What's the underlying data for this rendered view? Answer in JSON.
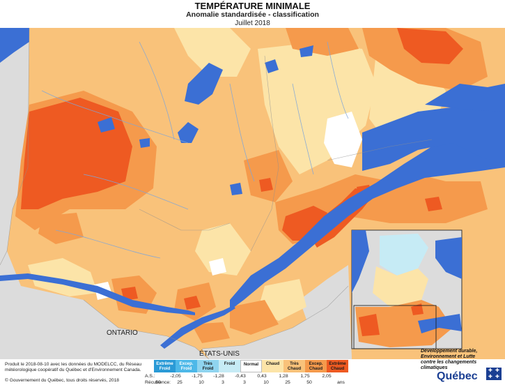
{
  "title": "TEMPÉRATURE MINIMALE",
  "subtitle": "Anomalie standardisée - classification",
  "period": "Juillet 2018",
  "labels": {
    "ontario": "ONTARIO",
    "usa": "ÉTATS-UNIS"
  },
  "footer": {
    "produced": "Produit le 2018-08-10 avec les données du MODELCC, du Réseau météorologique coopératif du Québec et d'Environnement Canada.",
    "copyright": "© Gouvernement du Québec, tous droits réservés, 2018"
  },
  "legend": {
    "as_label": "A.S.:",
    "recurrence_label": "Récurrence:",
    "years_unit": "ans",
    "classes": [
      {
        "label_line1": "Extrême",
        "label_line2": "Froid",
        "color": "#2a9ad6",
        "text_color": "#ffffff"
      },
      {
        "label_line1": "Excep.",
        "label_line2": "Froid",
        "color": "#4db8e8",
        "text_color": "#ffffff"
      },
      {
        "label_line1": "Très",
        "label_line2": "Froid",
        "color": "#8fd4ef",
        "text_color": "#1a1a1a"
      },
      {
        "label_line1": "Froid",
        "label_line2": "",
        "color": "#c6ebf5",
        "text_color": "#1a1a1a"
      },
      {
        "label_line1": "Normal",
        "label_line2": "",
        "color": "#ffffff",
        "text_color": "#1a1a1a"
      },
      {
        "label_line1": "Chaud",
        "label_line2": "",
        "color": "#fce4a8",
        "text_color": "#1a1a1a"
      },
      {
        "label_line1": "Très",
        "label_line2": "Chaud",
        "color": "#f9c27a",
        "text_color": "#1a1a1a"
      },
      {
        "label_line1": "Excep.",
        "label_line2": "Chaud",
        "color": "#f59a4c",
        "text_color": "#1a1a1a"
      },
      {
        "label_line1": "Extrême",
        "label_line2": "Chaud",
        "color": "#ee5a22",
        "text_color": "#1a1a1a"
      }
    ],
    "as_ticks": [
      "-2,05",
      "-1,75",
      "-1,28",
      "-0,43",
      "0,43",
      "1,28",
      "1,75",
      "2,05"
    ],
    "recurrence_ticks": [
      "50",
      "25",
      "10",
      "3",
      "3",
      "10",
      "25",
      "50"
    ]
  },
  "ministry": {
    "line1": "Développement durable,",
    "line2": "Environnement et Lutte",
    "line3": "contre les changements",
    "line4": "climatiques",
    "brand": "Québec"
  },
  "colors": {
    "water": "#3b6fd4",
    "outside": "#dcdcdc",
    "rivers": "#7fa6d9",
    "borders": "#909090"
  }
}
